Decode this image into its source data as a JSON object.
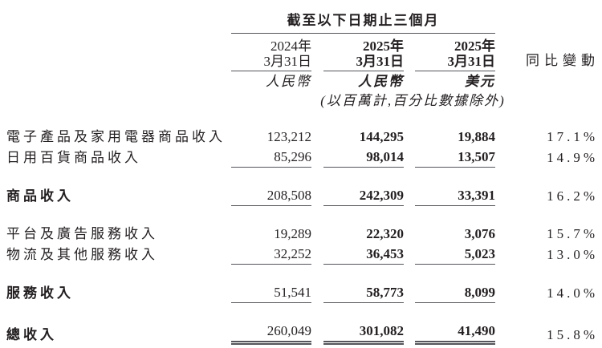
{
  "colors": {
    "text": "#231f20",
    "rule": "#54555a",
    "background": "#ffffff"
  },
  "table": {
    "header": {
      "period_title": "截至以下日期止三個月",
      "columns": [
        {
          "year": "2024年",
          "date": "3月31日",
          "currency": "人民幣"
        },
        {
          "year": "2025年",
          "date": "3月31日",
          "currency": "人民幣"
        },
        {
          "year": "2025年",
          "date": "3月31日",
          "currency": "美元"
        }
      ],
      "yoy_label": "同比變動",
      "unit_note": "(以百萬計,百分比數據除外)"
    },
    "rows": [
      {
        "label": "電子產品及家用電器商品收入",
        "v2024": "123,212",
        "v2025_rmb": "144,295",
        "v2025_usd": "19,884",
        "yoy": "17.1%"
      },
      {
        "label": "日用百貨商品收入",
        "v2024": "85,296",
        "v2025_rmb": "98,014",
        "v2025_usd": "13,507",
        "yoy": "14.9%"
      },
      {
        "label": "商品收入",
        "v2024": "208,508",
        "v2025_rmb": "242,309",
        "v2025_usd": "33,391",
        "yoy": "16.2%"
      },
      {
        "label": "平台及廣告服務收入",
        "v2024": "19,289",
        "v2025_rmb": "22,320",
        "v2025_usd": "3,076",
        "yoy": "15.7%"
      },
      {
        "label": "物流及其他服務收入",
        "v2024": "32,252",
        "v2025_rmb": "36,453",
        "v2025_usd": "5,023",
        "yoy": "13.0%"
      },
      {
        "label": "服務收入",
        "v2024": "51,541",
        "v2025_rmb": "58,773",
        "v2025_usd": "8,099",
        "yoy": "14.0%"
      },
      {
        "label": "總收入",
        "v2024": "260,049",
        "v2025_rmb": "301,082",
        "v2025_usd": "41,490",
        "yoy": "15.8%"
      }
    ]
  }
}
